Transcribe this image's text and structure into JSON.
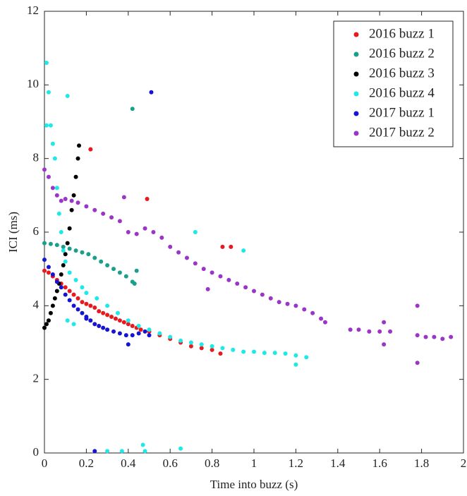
{
  "chart_data": {
    "type": "scatter",
    "xlabel": "Time into buzz (s)",
    "ylabel": "ICI (ms)",
    "xlim": [
      0,
      2
    ],
    "xticks": [
      0,
      0.2,
      0.4,
      0.6,
      0.8,
      1,
      1.2,
      1.4,
      1.6,
      1.8,
      2
    ],
    "ylim": [
      0,
      12
    ],
    "yticks": [
      0,
      2,
      4,
      6,
      8,
      10,
      12
    ],
    "grid": false,
    "legend": "top-right",
    "series": [
      {
        "name": "2016 buzz 1",
        "color": "#e8191e",
        "x": [
          0,
          0.02,
          0.04,
          0.06,
          0.08,
          0.1,
          0.12,
          0.14,
          0.16,
          0.18,
          0.2,
          0.22,
          0.24,
          0.26,
          0.28,
          0.3,
          0.32,
          0.34,
          0.36,
          0.38,
          0.4,
          0.42,
          0.44,
          0.46,
          0.5,
          0.55,
          0.6,
          0.65,
          0.7,
          0.75,
          0.8,
          0.84,
          0.22,
          0.49,
          0.85,
          0.89
        ],
        "values": [
          4.95,
          4.9,
          4.8,
          4.7,
          4.6,
          4.5,
          4.4,
          4.3,
          4.2,
          4.1,
          4.05,
          4.0,
          3.95,
          3.85,
          3.8,
          3.75,
          3.7,
          3.65,
          3.6,
          3.55,
          3.5,
          3.45,
          3.4,
          3.35,
          3.3,
          3.2,
          3.1,
          3.0,
          2.9,
          2.85,
          2.8,
          2.7,
          8.25,
          6.9,
          5.6,
          5.6
        ]
      },
      {
        "name": "2016 buzz 2",
        "color": "#1aa08a",
        "x": [
          0,
          0.03,
          0.06,
          0.09,
          0.12,
          0.15,
          0.18,
          0.21,
          0.24,
          0.27,
          0.3,
          0.33,
          0.36,
          0.39,
          0.42,
          0.43,
          0.42,
          0.44
        ],
        "values": [
          5.7,
          5.68,
          5.65,
          5.6,
          5.55,
          5.5,
          5.45,
          5.4,
          5.3,
          5.2,
          5.1,
          5.0,
          4.9,
          4.8,
          4.65,
          4.6,
          9.35,
          4.95
        ]
      },
      {
        "name": "2016 buzz 3",
        "color": "#000000",
        "x": [
          0,
          0.01,
          0.02,
          0.03,
          0.04,
          0.05,
          0.06,
          0.07,
          0.08,
          0.09,
          0.1,
          0.11,
          0.12,
          0.13,
          0.14,
          0.15,
          0.16,
          0.165
        ],
        "values": [
          3.4,
          3.5,
          3.6,
          3.8,
          4.0,
          4.2,
          4.4,
          4.6,
          4.85,
          5.1,
          5.4,
          5.7,
          6.1,
          6.6,
          7.0,
          7.5,
          8.0,
          8.35
        ]
      },
      {
        "name": "2016 buzz 4",
        "color": "#1ee8e8",
        "x": [
          0.01,
          0.02,
          0.01,
          0.03,
          0.04,
          0.05,
          0.11,
          0.06,
          0.07,
          0.08,
          0.09,
          0.1,
          0.12,
          0.15,
          0.18,
          0.2,
          0.25,
          0.3,
          0.35,
          0.4,
          0.45,
          0.5,
          0.55,
          0.6,
          0.65,
          0.7,
          0.75,
          0.8,
          0.85,
          0.9,
          0.95,
          1.0,
          1.05,
          1.1,
          1.15,
          1.2,
          1.25,
          0.72,
          0.95,
          0.11,
          0.14,
          0.3,
          0.37,
          0.47,
          0.48,
          0.65,
          1.2
        ],
        "values": [
          10.6,
          9.8,
          8.9,
          8.9,
          8.4,
          8.0,
          9.7,
          7.2,
          6.5,
          6.0,
          5.5,
          5.2,
          4.9,
          4.7,
          4.5,
          4.35,
          4.2,
          4.0,
          3.8,
          3.6,
          3.45,
          3.35,
          3.25,
          3.15,
          3.05,
          3.0,
          2.95,
          2.9,
          2.85,
          2.8,
          2.75,
          2.75,
          2.72,
          2.72,
          2.7,
          2.65,
          2.6,
          6.0,
          5.5,
          3.6,
          3.5,
          0.05,
          0.05,
          0.22,
          0.05,
          0.12,
          2.4
        ]
      },
      {
        "name": "2017 buzz 1",
        "color": "#1414d2",
        "x": [
          0,
          0.02,
          0.04,
          0.06,
          0.08,
          0.1,
          0.12,
          0.14,
          0.16,
          0.18,
          0.2,
          0.22,
          0.24,
          0.26,
          0.28,
          0.3,
          0.33,
          0.36,
          0.39,
          0.42,
          0.45,
          0.48,
          0.5,
          0.51,
          0.24,
          0.4,
          0.2
        ],
        "values": [
          5.25,
          5.05,
          4.85,
          4.65,
          4.5,
          4.3,
          4.15,
          4.0,
          3.9,
          3.8,
          3.7,
          3.6,
          3.5,
          3.45,
          3.4,
          3.35,
          3.3,
          3.25,
          3.2,
          3.2,
          3.25,
          3.3,
          3.2,
          9.8,
          0.05,
          2.95,
          3.65
        ]
      },
      {
        "name": "2017 buzz 2",
        "color": "#9a35c8",
        "x": [
          0,
          0.02,
          0.04,
          0.06,
          0.08,
          0.1,
          0.13,
          0.16,
          0.2,
          0.24,
          0.28,
          0.32,
          0.36,
          0.4,
          0.44,
          0.48,
          0.52,
          0.56,
          0.6,
          0.64,
          0.68,
          0.72,
          0.76,
          0.8,
          0.84,
          0.88,
          0.92,
          0.96,
          1.0,
          1.04,
          1.08,
          1.12,
          1.16,
          1.2,
          1.24,
          1.28,
          1.32,
          1.34,
          1.46,
          1.5,
          1.55,
          1.6,
          1.65,
          1.78,
          1.82,
          1.86,
          1.9,
          1.94,
          0.38,
          0.78,
          1.78,
          1.78,
          1.62,
          1.62
        ],
        "values": [
          7.7,
          7.5,
          7.2,
          7.0,
          6.85,
          6.9,
          6.85,
          6.8,
          6.7,
          6.6,
          6.5,
          6.4,
          6.3,
          6.0,
          5.95,
          6.1,
          6.0,
          5.85,
          5.6,
          5.45,
          5.3,
          5.15,
          5.0,
          4.9,
          4.8,
          4.7,
          4.6,
          4.5,
          4.4,
          4.3,
          4.2,
          4.1,
          4.05,
          4.0,
          3.9,
          3.8,
          3.65,
          3.55,
          3.35,
          3.35,
          3.3,
          3.3,
          3.3,
          3.2,
          3.15,
          3.15,
          3.1,
          3.15,
          6.95,
          4.45,
          4.0,
          2.45,
          3.55,
          2.95
        ]
      }
    ]
  }
}
